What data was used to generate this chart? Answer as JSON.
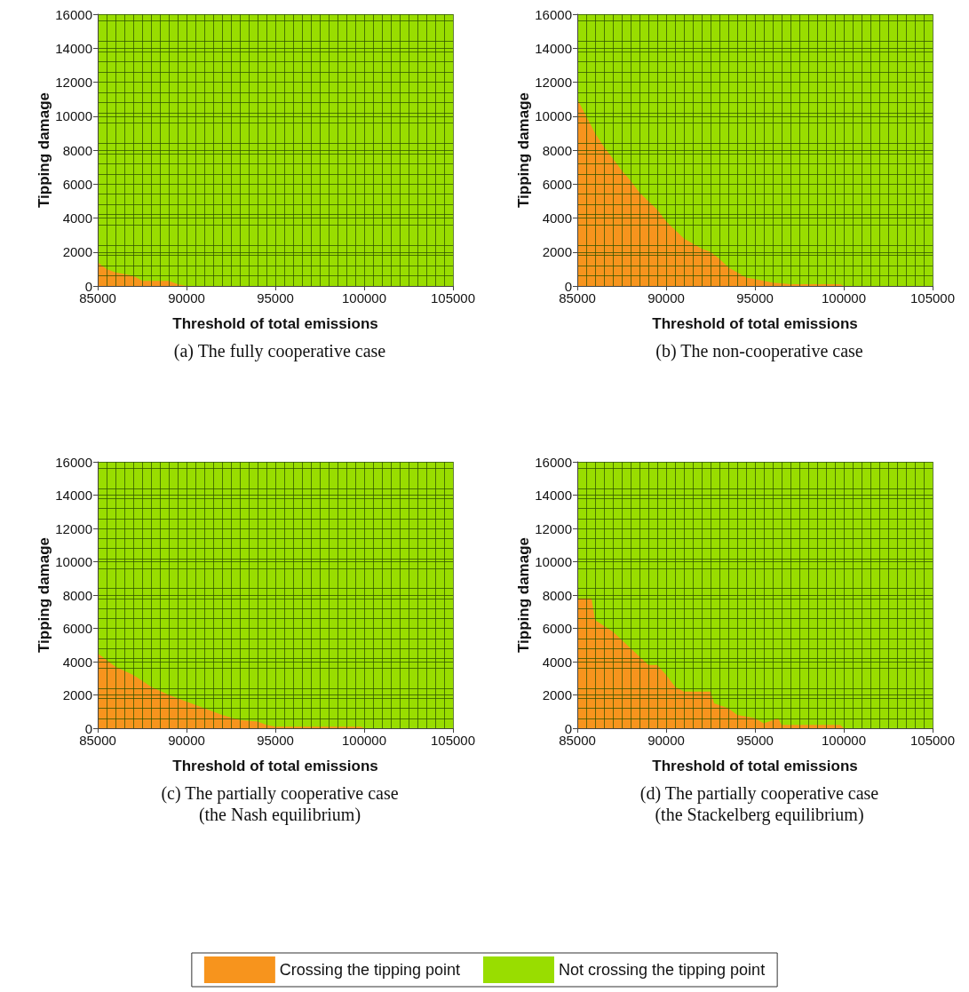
{
  "chart_data": [
    {
      "type": "area",
      "title": "(a) The fully cooperative case",
      "xlabel": "Threshold of total emissions",
      "ylabel": "Tipping damage",
      "stacked": true,
      "grid": true,
      "legend": "bottom",
      "xlim": [
        85000,
        105000
      ],
      "xticks": [
        85000,
        90000,
        95000,
        100000,
        105000
      ],
      "ylim": [
        0,
        16000
      ],
      "yticks": [
        0,
        2000,
        4000,
        6000,
        8000,
        10000,
        12000,
        14000,
        16000
      ],
      "x": [
        85000,
        85500,
        86000,
        87000,
        87500,
        89000,
        89500,
        90000,
        105000
      ],
      "series": [
        {
          "name": "Crossing the tipping point",
          "color": "#f7941d",
          "values": [
            1400,
            1000,
            800,
            600,
            300,
            300,
            100,
            0,
            0
          ]
        },
        {
          "name": "Not crossing the tipping point",
          "color": "#99dd00",
          "values": [
            14600,
            15000,
            15200,
            15400,
            15700,
            15700,
            15900,
            16000,
            16000
          ]
        }
      ]
    },
    {
      "type": "area",
      "title": "(b) The non-cooperative case",
      "xlabel": "Threshold of total emissions",
      "ylabel": "Tipping damage",
      "stacked": true,
      "grid": true,
      "legend": "bottom",
      "xlim": [
        85000,
        105000
      ],
      "xticks": [
        85000,
        90000,
        95000,
        100000,
        105000
      ],
      "ylim": [
        0,
        16000
      ],
      "yticks": [
        0,
        2000,
        4000,
        6000,
        8000,
        10000,
        12000,
        14000,
        16000
      ],
      "x": [
        85000,
        85500,
        86000,
        86500,
        87000,
        87500,
        88000,
        88500,
        89000,
        89500,
        90000,
        90500,
        91000,
        91500,
        92000,
        92500,
        93000,
        93500,
        94000,
        94500,
        95000,
        96000,
        97000,
        99800,
        100000,
        105000
      ],
      "series": [
        {
          "name": "Crossing the tipping point",
          "color": "#f7941d",
          "values": [
            11000,
            10000,
            9000,
            8200,
            7500,
            6800,
            6200,
            5500,
            5000,
            4500,
            3800,
            3300,
            2800,
            2500,
            2200,
            2000,
            1600,
            1100,
            800,
            500,
            400,
            200,
            100,
            100,
            0,
            0
          ]
        },
        {
          "name": "Not crossing the tipping point",
          "color": "#99dd00",
          "values": [
            5000,
            6000,
            7000,
            7800,
            8500,
            9200,
            9800,
            10500,
            11000,
            11500,
            12200,
            12700,
            13200,
            13500,
            13800,
            14000,
            14400,
            14900,
            15200,
            15500,
            15600,
            15800,
            15900,
            15900,
            16000,
            16000
          ]
        }
      ]
    },
    {
      "type": "area",
      "title": "(c) The partially cooperative case\n(the Nash equilibrium)",
      "xlabel": "Threshold of total emissions",
      "ylabel": "Tipping damage",
      "stacked": true,
      "grid": true,
      "legend": "bottom",
      "xlim": [
        85000,
        105000
      ],
      "xticks": [
        85000,
        90000,
        95000,
        100000,
        105000
      ],
      "ylim": [
        0,
        16000
      ],
      "yticks": [
        0,
        2000,
        4000,
        6000,
        8000,
        10000,
        12000,
        14000,
        16000
      ],
      "x": [
        85000,
        86000,
        87000,
        88000,
        89000,
        90000,
        91000,
        92000,
        93000,
        94000,
        94500,
        95000,
        99800,
        100000,
        105000
      ],
      "series": [
        {
          "name": "Crossing the tipping point",
          "color": "#f7941d",
          "values": [
            4500,
            3700,
            3200,
            2500,
            2000,
            1600,
            1200,
            800,
            500,
            400,
            200,
            100,
            100,
            0,
            0
          ]
        },
        {
          "name": "Not crossing the tipping point",
          "color": "#99dd00",
          "values": [
            11500,
            12300,
            12800,
            13500,
            14000,
            14400,
            14800,
            15200,
            15500,
            15600,
            15800,
            15900,
            15900,
            16000,
            16000
          ]
        }
      ]
    },
    {
      "type": "area",
      "title": "(d) The partially cooperative case\n(the Stackelberg equilibrium)",
      "xlabel": "Threshold of total emissions",
      "ylabel": "Tipping damage",
      "stacked": true,
      "grid": true,
      "legend": "bottom",
      "xlim": [
        85000,
        105000
      ],
      "xticks": [
        85000,
        90000,
        95000,
        100000,
        105000
      ],
      "ylim": [
        0,
        16000
      ],
      "yticks": [
        0,
        2000,
        4000,
        6000,
        8000,
        10000,
        12000,
        14000,
        16000
      ],
      "x": [
        85000,
        85800,
        86000,
        87000,
        88000,
        89000,
        89500,
        90000,
        90500,
        91000,
        92500,
        92700,
        93500,
        94000,
        95000,
        95500,
        96300,
        96500,
        99800,
        100000,
        105000
      ],
      "series": [
        {
          "name": "Crossing the tipping point",
          "color": "#f7941d",
          "values": [
            7800,
            7800,
            6500,
            5800,
            4800,
            3800,
            3800,
            3200,
            2500,
            2200,
            2200,
            1500,
            1200,
            800,
            600,
            300,
            600,
            200,
            200,
            0,
            0
          ]
        },
        {
          "name": "Not crossing the tipping point",
          "color": "#99dd00",
          "values": [
            8200,
            8200,
            9500,
            10200,
            11200,
            12200,
            12200,
            12800,
            13500,
            13800,
            13800,
            14500,
            14800,
            15200,
            15400,
            15700,
            15400,
            15800,
            15800,
            16000,
            16000
          ]
        }
      ]
    }
  ]
}
